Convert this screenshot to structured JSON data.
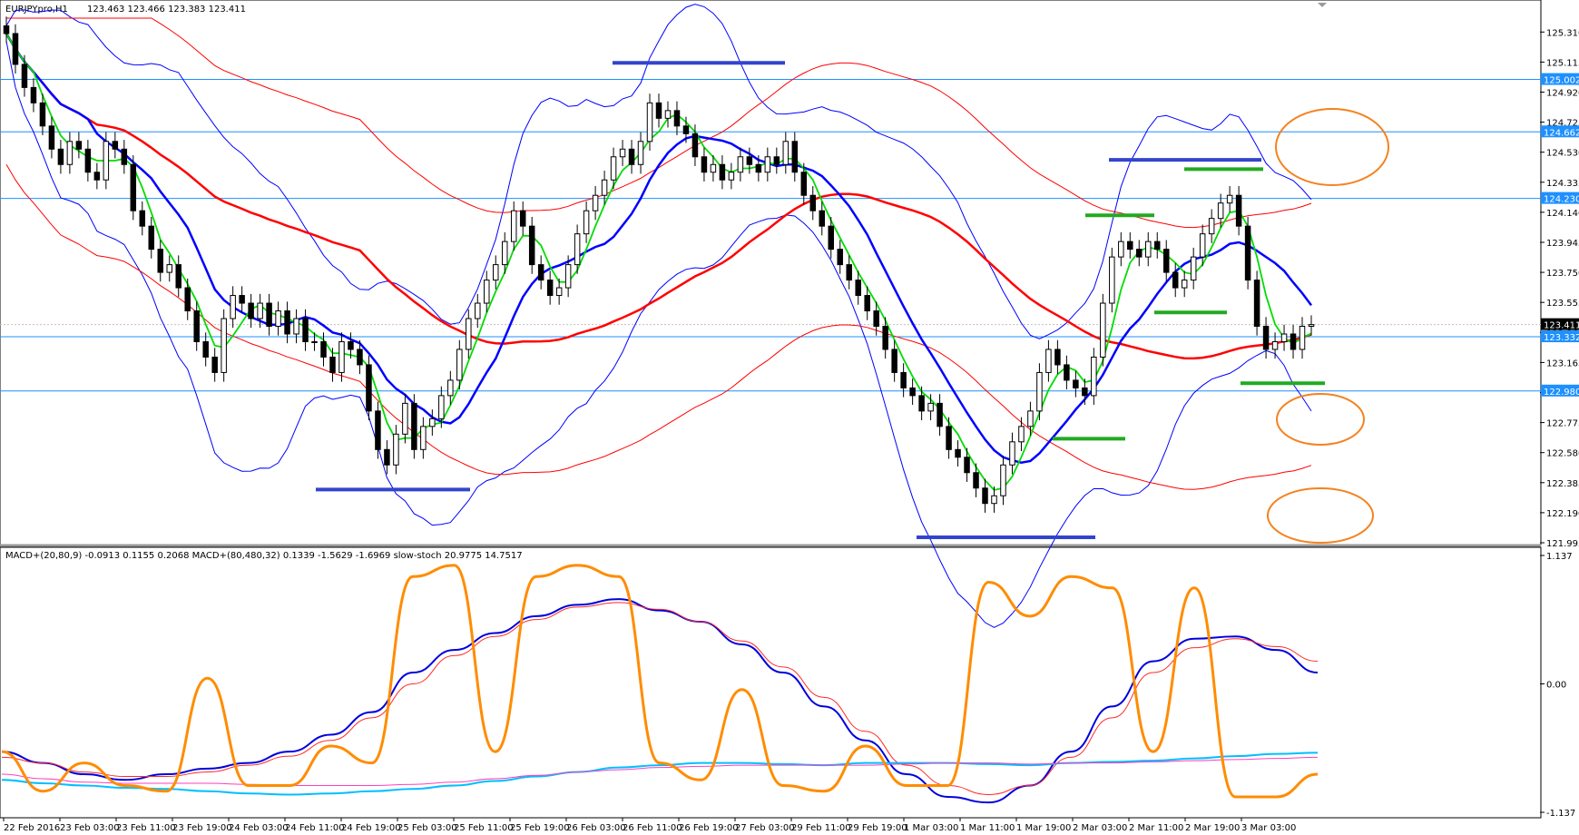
{
  "symbol_header": "EURJPYpro,H1",
  "ohlc_header": "123.463 123.466 123.383 123.411",
  "indicator_header": "MACD+(20,80,9) -0.0913 0.1155 0.2068  MACD+(80,480,32) 0.1339 -1.5629 -1.6969  slow-stoch 20.9775 14.7517",
  "chart_data": [
    {
      "type": "candlestick",
      "title": "EURJPYpro,H1",
      "ylim": [
        121.995,
        125.4
      ],
      "price_ticks": [
        "125.310",
        "125.115",
        "124.920",
        "124.725",
        "124.530",
        "124.335",
        "124.140",
        "123.945",
        "123.750",
        "123.555",
        "123.360",
        "123.165",
        "122.970",
        "122.775",
        "122.580",
        "122.385",
        "122.190",
        "121.995"
      ],
      "time_labels": [
        "22 Feb 2016",
        "23 Feb 03:00",
        "23 Feb 11:00",
        "23 Feb 19:00",
        "24 Feb 03:00",
        "24 Feb 11:00",
        "24 Feb 19:00",
        "25 Feb 03:00",
        "25 Feb 11:00",
        "25 Feb 19:00",
        "26 Feb 03:00",
        "26 Feb 11:00",
        "26 Feb 19:00",
        "27 Feb 03:00",
        "29 Feb 11:00",
        "29 Feb 19:00",
        "1 Mar 03:00",
        "1 Mar 11:00",
        "1 Mar 19:00",
        "2 Mar 03:00",
        "2 Mar 11:00",
        "2 Mar 19:00",
        "3 Mar 03:00"
      ],
      "closes": [
        125.3,
        125.1,
        124.95,
        124.85,
        124.7,
        124.55,
        124.45,
        124.6,
        124.55,
        124.4,
        124.35,
        124.6,
        124.55,
        124.45,
        124.15,
        124.05,
        123.9,
        123.75,
        123.8,
        123.65,
        123.5,
        123.3,
        123.2,
        123.1,
        123.45,
        123.6,
        123.55,
        123.45,
        123.55,
        123.4,
        123.5,
        123.35,
        123.45,
        123.3,
        123.3,
        123.2,
        123.1,
        123.3,
        123.25,
        123.15,
        122.85,
        122.6,
        122.5,
        122.7,
        122.9,
        122.6,
        122.75,
        122.8,
        122.95,
        123.05,
        123.25,
        123.45,
        123.55,
        123.7,
        123.8,
        123.95,
        124.15,
        124.05,
        123.8,
        123.7,
        123.6,
        123.65,
        123.8,
        124.0,
        124.15,
        124.25,
        124.35,
        124.5,
        124.55,
        124.45,
        124.6,
        124.85,
        124.75,
        124.8,
        124.7,
        124.65,
        124.5,
        124.4,
        124.45,
        124.35,
        124.4,
        124.5,
        124.45,
        124.4,
        124.5,
        124.45,
        124.6,
        124.4,
        124.25,
        124.15,
        124.05,
        123.9,
        123.8,
        123.7,
        123.6,
        123.5,
        123.4,
        123.25,
        123.1,
        123.0,
        122.95,
        122.85,
        122.9,
        122.75,
        122.6,
        122.55,
        122.45,
        122.35,
        122.25,
        122.3,
        122.5,
        122.65,
        122.75,
        122.85,
        123.1,
        123.25,
        123.15,
        123.05,
        123.0,
        122.95,
        123.2,
        123.55,
        123.85,
        123.95,
        123.9,
        123.85,
        123.95,
        123.9,
        123.75,
        123.65,
        123.7,
        123.85,
        124.0,
        124.1,
        124.2,
        124.25,
        124.05,
        123.7,
        123.4,
        123.25,
        123.3,
        123.35,
        123.25,
        123.4,
        123.411
      ],
      "bands_note": "moving averages (green, blue, red) and envelope bands (red, blue)",
      "horizontal_levels": [
        125.002,
        124.662,
        124.23,
        123.332,
        122.98
      ],
      "level_labels": [
        "125.002",
        "124.662",
        "124.230",
        "123.332",
        "122.980"
      ],
      "current_price": 123.411,
      "current_price_label": "123.411"
    },
    {
      "type": "line",
      "ylim": [
        -1.137,
        1.137
      ],
      "tick_labels": [
        "1.137",
        "0.00",
        "-1.137"
      ],
      "series": [
        {
          "values": [
            -0.6,
            -0.7,
            -0.8,
            -0.85,
            -0.8,
            -0.75,
            -0.7,
            -0.6,
            -0.45,
            -0.25,
            0.1,
            0.3,
            0.45,
            0.6,
            0.7,
            0.75,
            0.65,
            0.55,
            0.35,
            0.1,
            -0.2,
            -0.5,
            -0.8,
            -1.0,
            -1.05,
            -0.9,
            -0.6,
            -0.2,
            0.2,
            0.4,
            0.42,
            0.3,
            0.1
          ]
        },
        {
          "values": [
            -0.65,
            -0.7,
            -0.78,
            -0.82,
            -0.82,
            -0.78,
            -0.72,
            -0.64,
            -0.5,
            -0.3,
            0.0,
            0.25,
            0.42,
            0.57,
            0.68,
            0.72,
            0.66,
            0.55,
            0.38,
            0.15,
            -0.12,
            -0.42,
            -0.72,
            -0.9,
            -0.98,
            -0.9,
            -0.65,
            -0.3,
            0.1,
            0.32,
            0.4,
            0.33,
            0.2
          ]
        },
        {
          "values": [
            -0.85,
            -0.88,
            -0.9,
            -0.92,
            -0.93,
            -0.95,
            -0.97,
            -0.98,
            -0.97,
            -0.95,
            -0.93,
            -0.9,
            -0.86,
            -0.82,
            -0.78,
            -0.74,
            -0.72,
            -0.7,
            -0.7,
            -0.71,
            -0.72,
            -0.7,
            -0.7,
            -0.7,
            -0.71,
            -0.72,
            -0.7,
            -0.69,
            -0.68,
            -0.66,
            -0.64,
            -0.62,
            -0.61
          ]
        },
        {
          "values": [
            -0.8,
            -0.84,
            -0.87,
            -0.88,
            -0.88,
            -0.88,
            -0.89,
            -0.9,
            -0.9,
            -0.9,
            -0.89,
            -0.87,
            -0.84,
            -0.81,
            -0.78,
            -0.76,
            -0.74,
            -0.73,
            -0.72,
            -0.72,
            -0.72,
            -0.72,
            -0.71,
            -0.7,
            -0.7,
            -0.71,
            -0.7,
            -0.7,
            -0.69,
            -0.68,
            -0.67,
            -0.66,
            -0.65
          ]
        },
        {
          "values": [
            -0.6,
            -0.95,
            -0.7,
            -0.9,
            -0.95,
            0.05,
            -0.9,
            -0.9,
            -0.55,
            -0.7,
            0.95,
            1.05,
            -0.6,
            0.95,
            1.05,
            0.95,
            -0.7,
            -0.85,
            -0.05,
            -0.9,
            -0.95,
            -0.55,
            -0.9,
            -0.9,
            0.9,
            0.6,
            0.95,
            0.85,
            -0.6,
            0.85,
            -1.0,
            -1.0,
            -0.8
          ]
        }
      ]
    }
  ],
  "annotations": {
    "circles": 3,
    "blue_segments": 4,
    "green_segments": 5
  }
}
